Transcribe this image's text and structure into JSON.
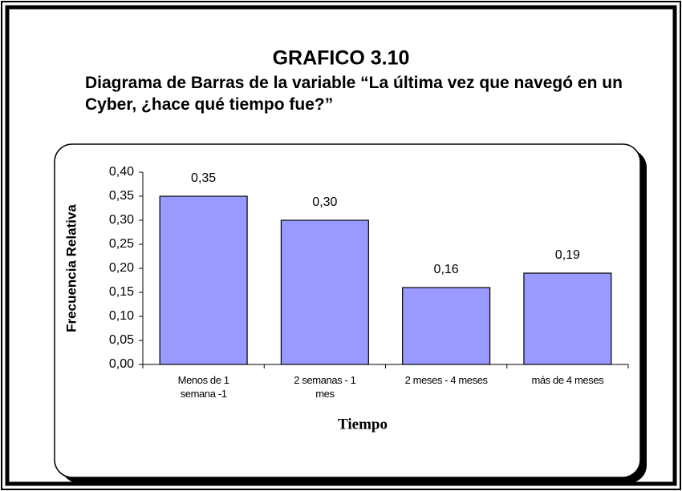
{
  "chart_data": {
    "type": "bar",
    "title": "GRAFICO 3.10",
    "subtitle": "Diagrama de Barras de la variable “La última vez que navegó en un Cyber, ¿hace qué tiempo fue?”",
    "x_label": "Tiempo",
    "y_label": "Frecuencia Relativa",
    "categories": [
      "Menos de 1 semana -1 semana",
      "2 semanas - 1 mes",
      "2 meses - 4 meses",
      "más de 4 meses"
    ],
    "values": [
      0.35,
      0.3,
      0.16,
      0.19
    ],
    "value_labels": [
      "0,35",
      "0,30",
      "0,16",
      "0,19"
    ],
    "color": "#9999ff",
    "ylim": [
      0,
      0.4
    ],
    "yticks": [
      {
        "value": 0,
        "label": "0,00"
      },
      {
        "value": 0.05,
        "label": "0,05"
      },
      {
        "value": 0.1,
        "label": "0,10"
      },
      {
        "value": 0.15,
        "label": "0,15"
      },
      {
        "value": 0.2,
        "label": "0,20"
      },
      {
        "value": 0.25,
        "label": "0,25"
      },
      {
        "value": 0.3,
        "label": "0,30"
      },
      {
        "value": 0.35,
        "label": "0,35"
      },
      {
        "value": 0.4,
        "label": "0,40"
      }
    ],
    "grid": false
  }
}
